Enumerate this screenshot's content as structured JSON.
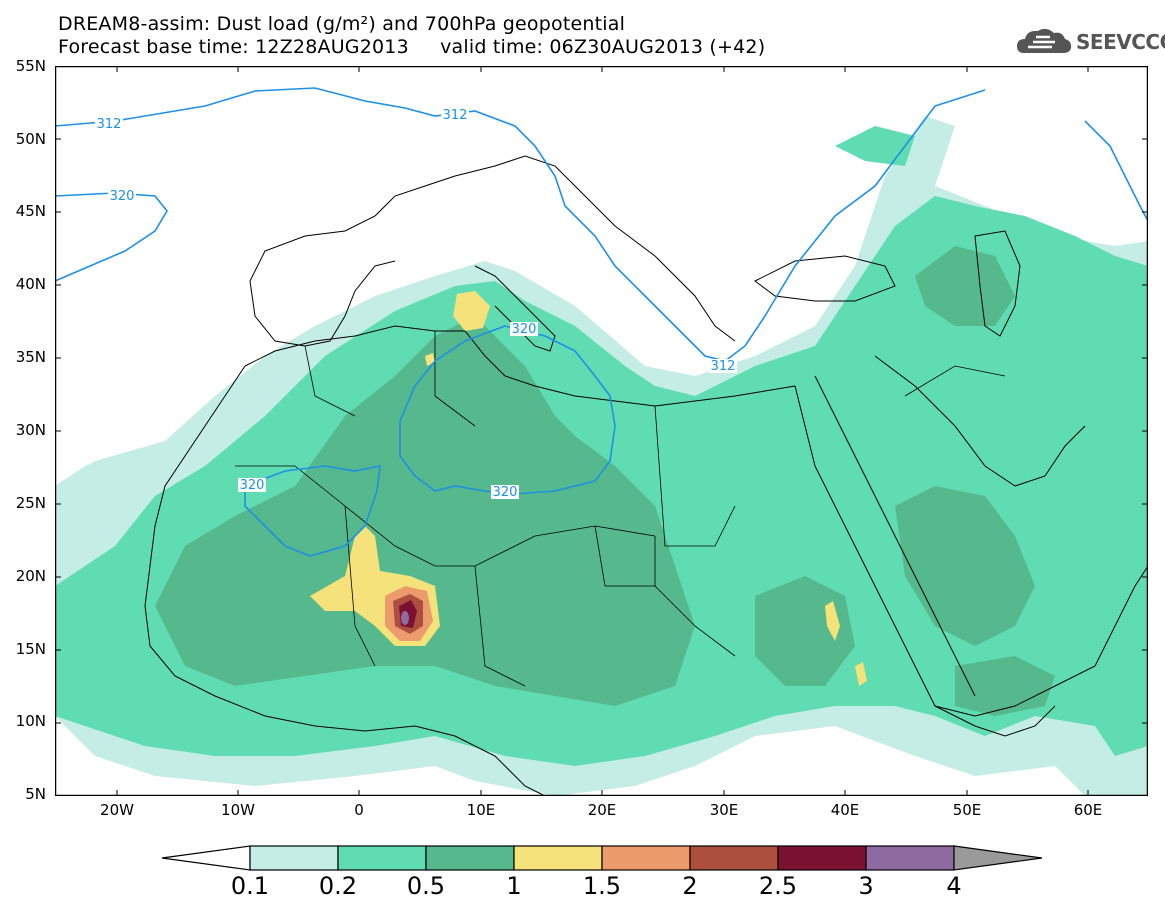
{
  "header": {
    "title_line1": "DREAM8-assim: Dust load (g/m²) and 700hPa geopotential",
    "title_line2": "Forecast base time: 12Z28AUG2013     valid time: 06Z30AUG2013 (+42)"
  },
  "logo": {
    "text": "SEEVCCC",
    "icon": "cloud-logo-icon"
  },
  "map": {
    "lat_labels": [
      "55N",
      "50N",
      "45N",
      "40N",
      "35N",
      "30N",
      "25N",
      "20N",
      "15N",
      "10N",
      "5N"
    ],
    "lon_labels": [
      "20W",
      "10W",
      "0",
      "10E",
      "20E",
      "30E",
      "40E",
      "50E",
      "60E"
    ],
    "contour_labels": [
      "312",
      "312",
      "320",
      "320",
      "312",
      "320",
      "320"
    ],
    "colors": {
      "ocean": "#ffffff",
      "coast": "#000000",
      "contour": "#1e90e6",
      "c01": "#c4ede5",
      "c02": "#5fdcb1",
      "c05": "#56b98d",
      "c1": "#f5e27a",
      "c15": "#ec9b6c",
      "c2": "#ad4f3f",
      "c25": "#7c1232",
      "c3": "#8d6aa0",
      "c4": "#9a9a9a"
    }
  },
  "colorbar": {
    "labels": [
      "0.1",
      "0.2",
      "0.5",
      "1",
      "1.5",
      "2",
      "2.5",
      "3",
      "4"
    ],
    "colors": [
      "#c4ede5",
      "#5fdcb1",
      "#56b98d",
      "#f5e27a",
      "#ec9b6c",
      "#ad4f3f",
      "#7c1232",
      "#8d6aa0"
    ],
    "low_arrow_color": "#ffffff",
    "high_arrow_color": "#9a9a9a"
  }
}
